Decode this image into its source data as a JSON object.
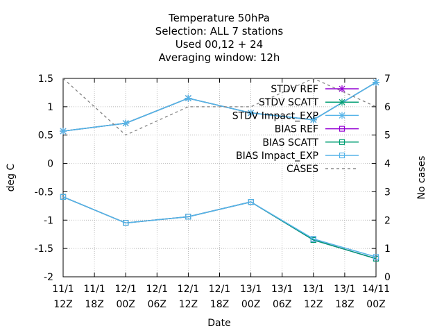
{
  "chart_data": {
    "type": "line",
    "title_lines": [
      "Temperature 50hPa",
      "Selection: ALL      7 stations",
      "Used  00,12  + 24",
      "Averaging window: 12h"
    ],
    "xlabel": "Date",
    "ylabel": "deg C",
    "y2label": "No cases",
    "x_ticks": [
      {
        "top": "11/1",
        "bottom": "12Z"
      },
      {
        "top": "11/1",
        "bottom": "18Z"
      },
      {
        "top": "12/1",
        "bottom": "00Z"
      },
      {
        "top": "12/1",
        "bottom": "06Z"
      },
      {
        "top": "12/1",
        "bottom": "12Z"
      },
      {
        "top": "12/1",
        "bottom": "18Z"
      },
      {
        "top": "13/1",
        "bottom": "00Z"
      },
      {
        "top": "13/1",
        "bottom": "06Z"
      },
      {
        "top": "13/1",
        "bottom": "12Z"
      },
      {
        "top": "13/1",
        "bottom": "18Z"
      },
      {
        "top": "14/11",
        "bottom": "00Z"
      }
    ],
    "y_ticks": [
      "-2",
      "-1.5",
      "-1",
      "-0.5",
      "0",
      "0.5",
      "1",
      "1.5"
    ],
    "y2_ticks": [
      "0",
      "1",
      "2",
      "3",
      "4",
      "5",
      "6",
      "7"
    ],
    "ylim": [
      -2,
      1.5
    ],
    "y2lim": [
      0,
      7
    ],
    "grid": true,
    "legend_position": "top-right",
    "series": [
      {
        "name": "STDV REF",
        "axis": "y",
        "color": "#9400d3",
        "marker": "x",
        "dash": "",
        "x": [
          0,
          2,
          4,
          6,
          8,
          10
        ],
        "values": [
          0.57,
          0.71,
          1.15,
          0.89,
          0.77,
          1.43
        ]
      },
      {
        "name": "STDV SCATT",
        "axis": "y",
        "color": "#009e73",
        "marker": "x",
        "dash": "",
        "x": [
          0,
          2,
          4,
          6,
          8,
          10
        ],
        "values": [
          0.57,
          0.71,
          1.15,
          0.89,
          0.77,
          1.43
        ]
      },
      {
        "name": "STDV Impact_EXP",
        "axis": "y",
        "color": "#56b4e9",
        "marker": "x",
        "dash": "",
        "x": [
          0,
          2,
          4,
          6,
          8,
          10
        ],
        "values": [
          0.57,
          0.71,
          1.15,
          0.89,
          0.77,
          1.43
        ]
      },
      {
        "name": "BIAS REF",
        "axis": "y",
        "color": "#9400d3",
        "marker": "square",
        "dash": "",
        "x": [
          0,
          2,
          4,
          6,
          8,
          10
        ],
        "values": [
          -0.59,
          -1.05,
          -0.94,
          -0.68,
          -1.35,
          -1.68
        ]
      },
      {
        "name": "BIAS SCATT",
        "axis": "y",
        "color": "#009e73",
        "marker": "square",
        "dash": "",
        "x": [
          0,
          2,
          4,
          6,
          8,
          10
        ],
        "values": [
          -0.59,
          -1.05,
          -0.94,
          -0.68,
          -1.35,
          -1.68
        ]
      },
      {
        "name": "BIAS Impact_EXP",
        "axis": "y",
        "color": "#56b4e9",
        "marker": "square",
        "dash": "",
        "x": [
          0,
          2,
          4,
          6,
          8,
          10
        ],
        "values": [
          -0.59,
          -1.05,
          -0.94,
          -0.68,
          -1.33,
          -1.65
        ]
      },
      {
        "name": "CASES",
        "axis": "y2",
        "color": "#808080",
        "marker": "none",
        "dash": "4,4",
        "x": [
          0,
          2,
          4,
          6,
          8,
          10
        ],
        "values": [
          7,
          5,
          6,
          6,
          7,
          6
        ]
      }
    ]
  }
}
